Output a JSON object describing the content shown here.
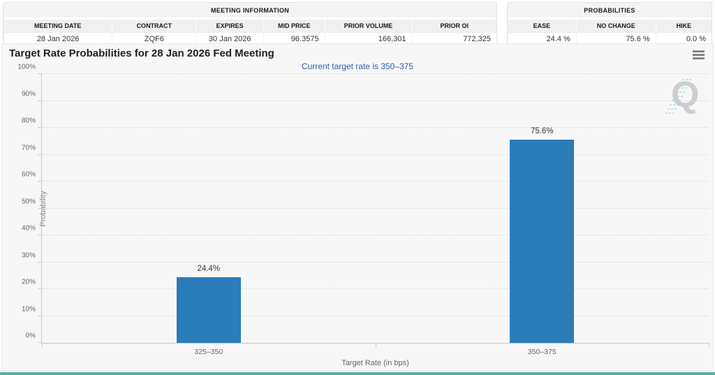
{
  "meeting_information": {
    "title": "MEETING INFORMATION",
    "columns": [
      "MEETING DATE",
      "CONTRACT",
      "EXPIRES",
      "MID PRICE",
      "PRIOR VOLUME",
      "PRIOR OI"
    ],
    "values": [
      "28 Jan 2026",
      "ZQF6",
      "30 Jan 2026",
      "96.3575",
      "166,301",
      "772,325"
    ]
  },
  "probabilities": {
    "title": "PROBABILITIES",
    "columns": [
      "EASE",
      "NO CHANGE",
      "HIKE"
    ],
    "values": [
      "24.4 %",
      "75.6 %",
      "0.0 %"
    ]
  },
  "chart_data": {
    "type": "bar",
    "title": "Target Rate Probabilities for 28 Jan 2026 Fed Meeting",
    "subtitle": "Current target rate is 350–375",
    "categories": [
      "325–350",
      "350–375"
    ],
    "values": [
      24.4,
      75.6
    ],
    "data_labels": [
      "24.4%",
      "75.6%"
    ],
    "xlabel": "Target Rate (in bps)",
    "ylabel": "Probability",
    "ylim": [
      0,
      100
    ],
    "ytick_step": 10,
    "ytick_suffix": "%",
    "grid": "horizontal-dotted",
    "legend": "none",
    "bar_color": "#2b7cb8"
  },
  "icons": {
    "context_menu": "hamburger-icon",
    "watermark": "quikstrike-q-watermark",
    "watermark_letter": "Q"
  },
  "colors": {
    "bar": "#2b7cb8",
    "subtitle_text": "#2e5fa8",
    "bottom_accent": "#54b2a0",
    "chart_background": "#f7f7f7"
  }
}
